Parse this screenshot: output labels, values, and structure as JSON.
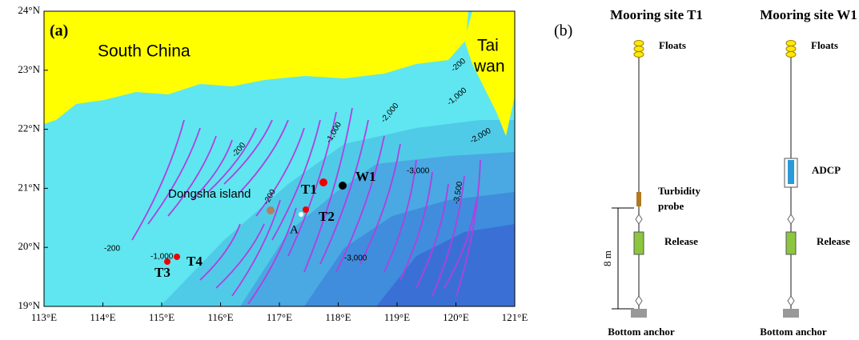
{
  "panel_a": {
    "label": "(a)",
    "lon_ticks": [
      "113°E",
      "114°E",
      "115°E",
      "116°E",
      "117°E",
      "118°E",
      "119°E",
      "120°E",
      "121°E"
    ],
    "lat_ticks": [
      "24°N",
      "23°N",
      "22°N",
      "21°N",
      "20°N",
      "19°N"
    ],
    "land_labels": [
      "South China",
      "Tai",
      "wan"
    ],
    "contour_labels": [
      "-200",
      "-1,000",
      "-2,000",
      "-3,000",
      "-3,500",
      "-2,000",
      "-1,000",
      "-200",
      "-200",
      "-200",
      "-1,000",
      "-3,000"
    ],
    "sites": [
      "T1",
      "T2",
      "T3",
      "T4",
      "W1",
      "A"
    ],
    "island": "Dongsha island"
  },
  "panel_b": {
    "label": "(b)",
    "moorings": [
      {
        "title": "Mooring site T1",
        "floats": "Floats",
        "instrument": [
          "Turbidity",
          "probe"
        ],
        "release": "Release",
        "anchor": "Bottom anchor",
        "scale": "8 m"
      },
      {
        "title": "Mooring site W1",
        "floats": "Floats",
        "instrument": [
          "ADCP"
        ],
        "release": "Release",
        "anchor": "Bottom anchor"
      }
    ]
  }
}
